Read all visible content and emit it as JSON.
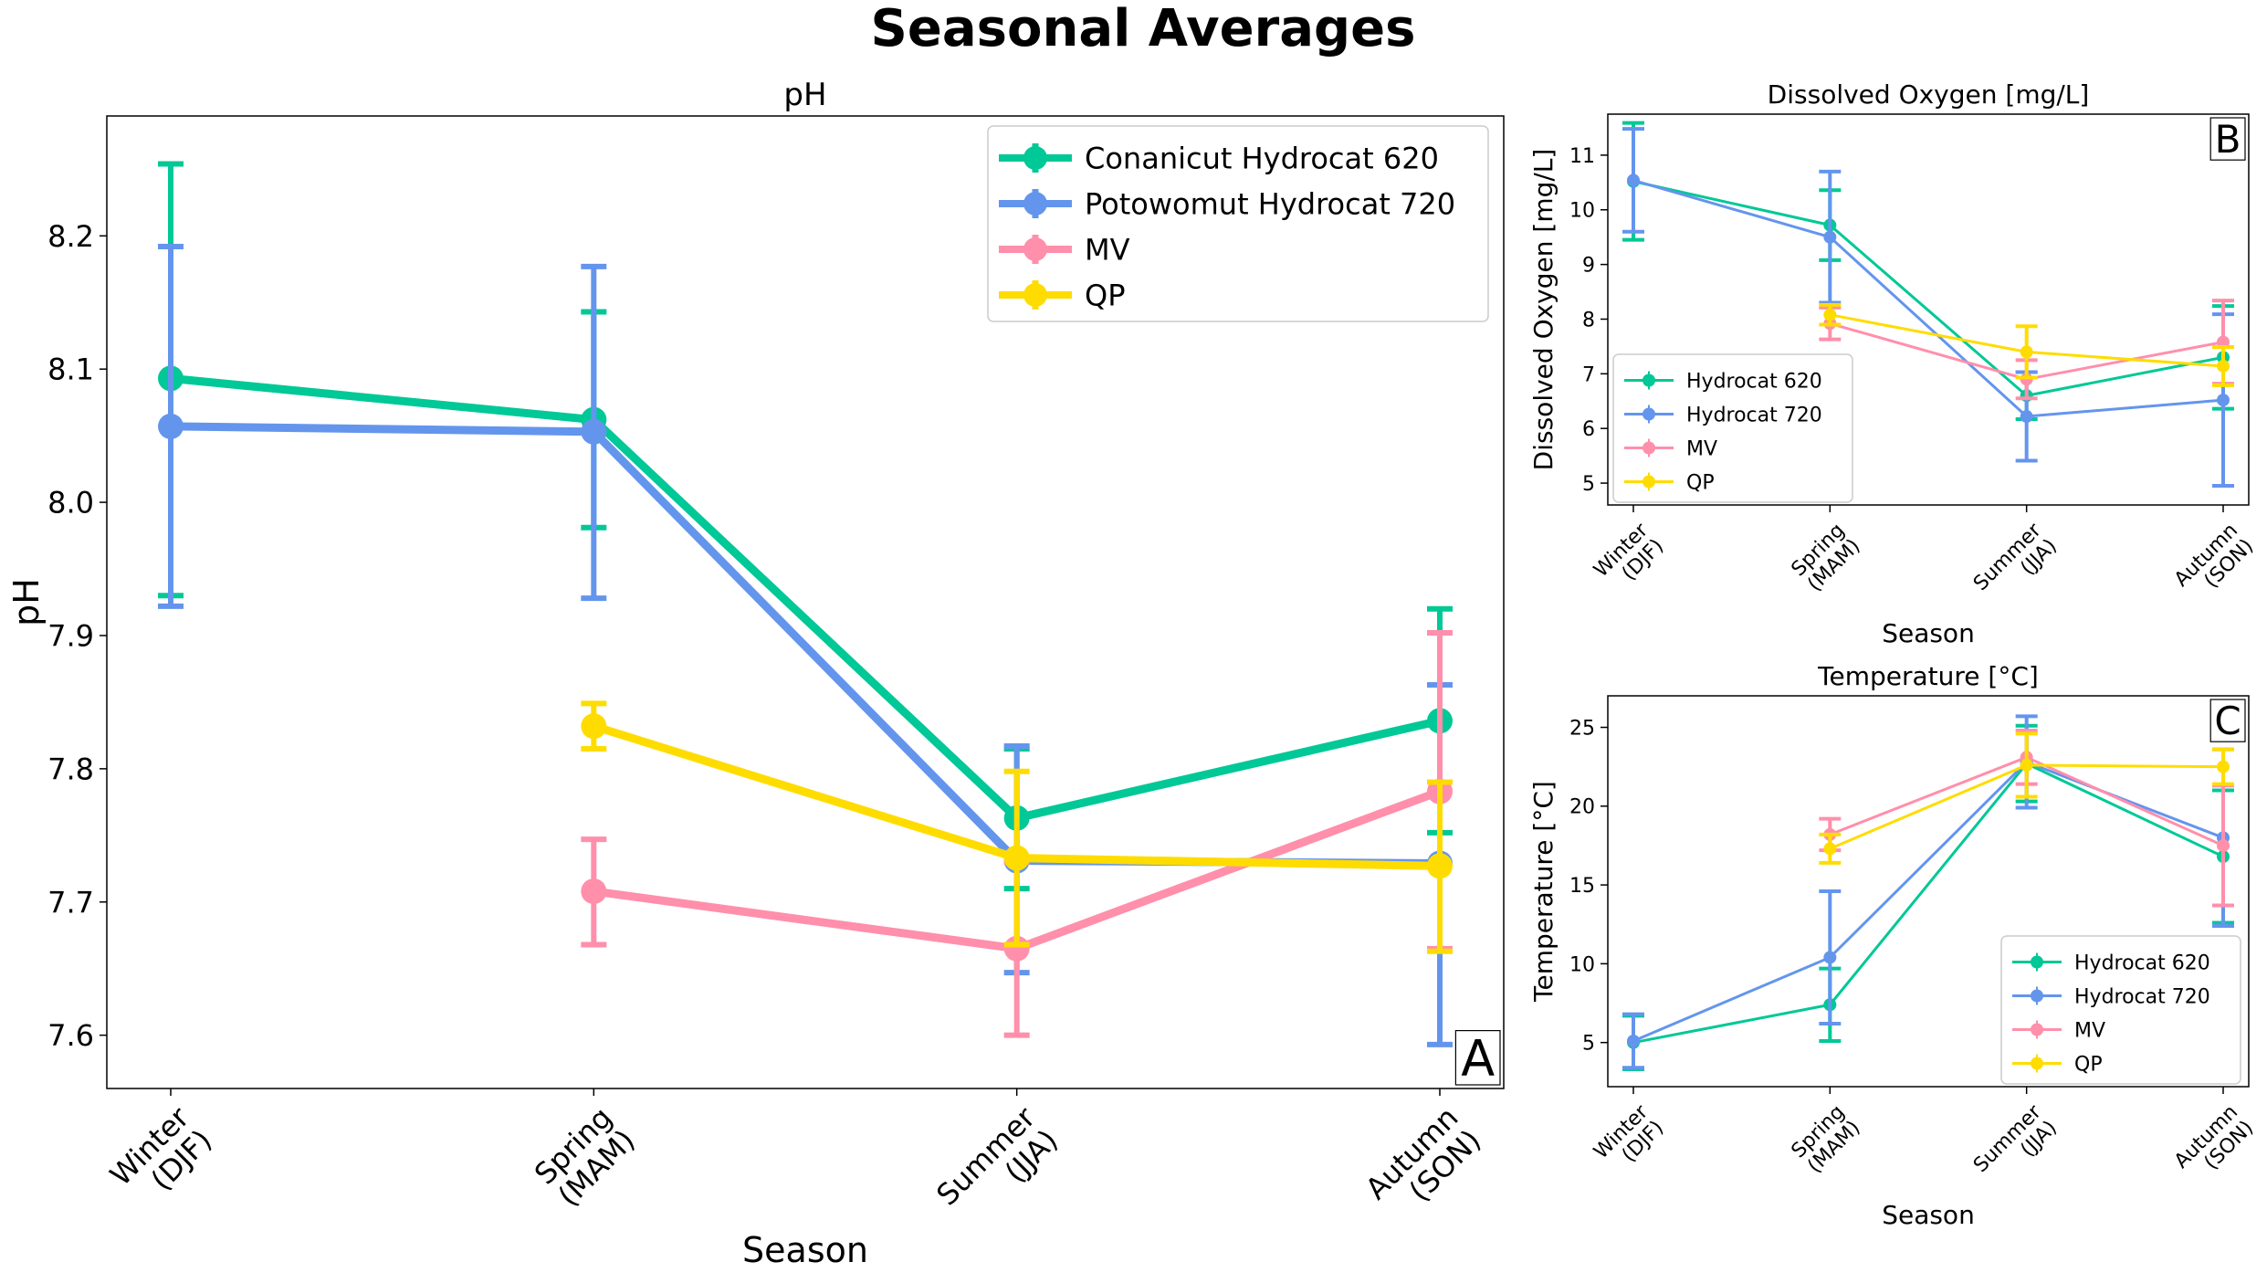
{
  "suptitle": "Seasonal Averages",
  "colors": {
    "Hydrocat 620": "#00C896",
    "Hydrocat 720": "#6495ED",
    "MV": "#FF8FAB",
    "QP": "#FFDC00"
  },
  "chart_data": [
    {
      "panel": "A",
      "type": "line",
      "title": "pH",
      "xlabel": "Season",
      "ylabel": "pH",
      "categories": [
        "Winter\n(DJF)",
        "Spring\n(MAM)",
        "Summer\n(JJA)",
        "Autumn\n(SON)"
      ],
      "ylim": [
        7.56,
        8.29
      ],
      "yticks": [
        7.6,
        7.7,
        7.8,
        7.9,
        8.0,
        8.1,
        8.2
      ],
      "legend": {
        "position": "top-right",
        "labels": [
          "Conanicut Hydrocat 620",
          "Potowomut Hydrocat 720",
          "MV",
          "QP"
        ]
      },
      "series": [
        {
          "name": "Conanicut Hydrocat 620",
          "key": "Hydrocat 620",
          "values": [
            8.093,
            8.062,
            7.763,
            7.836
          ],
          "err_low": [
            7.93,
            7.981,
            7.71,
            7.752
          ],
          "err_high": [
            8.254,
            8.143,
            7.815,
            7.92
          ]
        },
        {
          "name": "Potowomut Hydrocat 720",
          "key": "Hydrocat 720",
          "values": [
            8.057,
            8.053,
            7.731,
            7.729
          ],
          "err_low": [
            7.922,
            7.928,
            7.647,
            7.593
          ],
          "err_high": [
            8.192,
            8.177,
            7.817,
            7.863
          ]
        },
        {
          "name": "MV",
          "key": "MV",
          "values": [
            null,
            7.708,
            7.665,
            7.783
          ],
          "err_low": [
            null,
            7.668,
            7.6,
            7.665
          ],
          "err_high": [
            null,
            7.747,
            7.73,
            7.902
          ]
        },
        {
          "name": "QP",
          "key": "QP",
          "values": [
            null,
            7.832,
            7.733,
            7.727
          ],
          "err_low": [
            null,
            7.815,
            7.668,
            7.663
          ],
          "err_high": [
            null,
            7.849,
            7.798,
            7.79
          ]
        }
      ]
    },
    {
      "panel": "B",
      "type": "line",
      "title": "Dissolved Oxygen [mg/L]",
      "xlabel": "Season",
      "ylabel": "Dissolved Oxygen [mg/L]",
      "categories": [
        "Winter\n(DJF)",
        "Spring\n(MAM)",
        "Summer\n(JJA)",
        "Autumn\n(SON)"
      ],
      "ylim": [
        4.6,
        11.75
      ],
      "yticks": [
        5,
        6,
        7,
        8,
        9,
        10,
        11
      ],
      "legend": {
        "position": "bottom-left",
        "labels": [
          "Hydrocat 620",
          "Hydrocat 720",
          "MV",
          "QP"
        ]
      },
      "series": [
        {
          "name": "Hydrocat 620",
          "key": "Hydrocat 620",
          "values": [
            10.52,
            9.72,
            6.6,
            7.3
          ],
          "err_low": [
            9.45,
            9.08,
            6.17,
            6.36
          ],
          "err_high": [
            11.59,
            10.36,
            7.03,
            8.24
          ]
        },
        {
          "name": "Hydrocat 720",
          "key": "Hydrocat 720",
          "values": [
            10.54,
            9.5,
            6.22,
            6.52
          ],
          "err_low": [
            9.6,
            8.3,
            5.41,
            4.95
          ],
          "err_high": [
            11.48,
            10.7,
            7.03,
            8.09
          ]
        },
        {
          "name": "MV",
          "key": "MV",
          "values": [
            null,
            7.92,
            6.9,
            7.58
          ],
          "err_low": [
            null,
            7.63,
            6.55,
            6.82
          ],
          "err_high": [
            null,
            8.21,
            7.25,
            8.34
          ]
        },
        {
          "name": "QP",
          "key": "QP",
          "values": [
            null,
            8.08,
            7.4,
            7.14
          ],
          "err_low": [
            null,
            7.9,
            6.93,
            6.79
          ],
          "err_high": [
            null,
            8.26,
            7.87,
            7.49
          ]
        }
      ]
    },
    {
      "panel": "C",
      "type": "line",
      "title": "Temperature [°C]",
      "xlabel": "Season",
      "ylabel": "Temperature [°C]",
      "categories": [
        "Winter\n(DJF)",
        "Spring\n(MAM)",
        "Summer\n(JJA)",
        "Autumn\n(SON)"
      ],
      "ylim": [
        2.2,
        27.0
      ],
      "yticks": [
        5,
        10,
        15,
        20,
        25
      ],
      "legend": {
        "position": "bottom-right",
        "labels": [
          "Hydrocat 620",
          "Hydrocat 720",
          "MV",
          "QP"
        ]
      },
      "series": [
        {
          "name": "Hydrocat 620",
          "key": "Hydrocat 620",
          "values": [
            5.0,
            7.4,
            22.7,
            16.8
          ],
          "err_low": [
            3.3,
            5.1,
            20.3,
            12.6
          ],
          "err_high": [
            6.7,
            9.7,
            25.1,
            21.0
          ]
        },
        {
          "name": "Hydrocat 720",
          "key": "Hydrocat 720",
          "values": [
            5.1,
            10.4,
            22.8,
            18.0
          ],
          "err_low": [
            3.4,
            6.2,
            19.9,
            12.4
          ],
          "err_high": [
            6.8,
            14.6,
            25.7,
            23.6
          ]
        },
        {
          "name": "MV",
          "key": "MV",
          "values": [
            null,
            18.2,
            23.1,
            17.5
          ],
          "err_low": [
            null,
            17.2,
            21.4,
            13.7
          ],
          "err_high": [
            null,
            19.2,
            24.8,
            21.3
          ]
        },
        {
          "name": "QP",
          "key": "QP",
          "values": [
            null,
            17.3,
            22.6,
            22.5
          ],
          "err_low": [
            null,
            16.4,
            20.6,
            21.4
          ],
          "err_high": [
            null,
            18.2,
            24.6,
            23.6
          ]
        }
      ]
    }
  ]
}
